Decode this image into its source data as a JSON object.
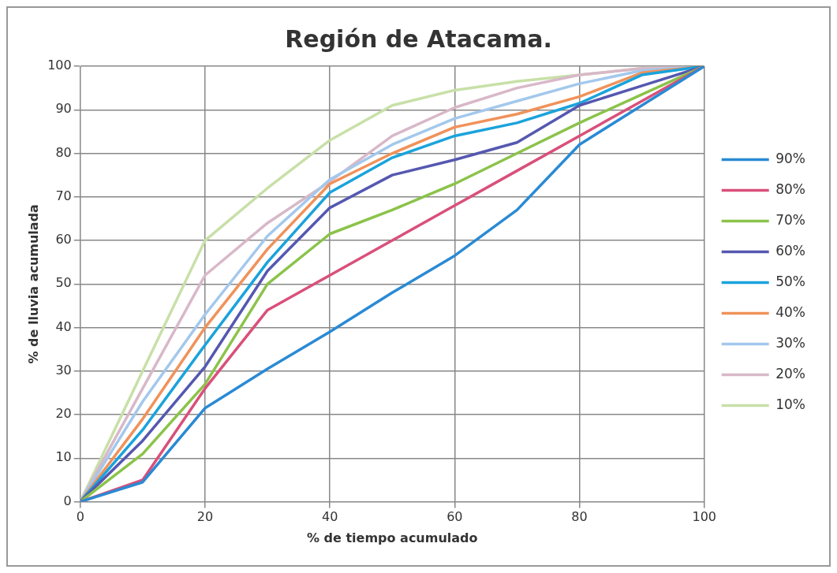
{
  "chart_data": {
    "type": "line",
    "title": "Región de Atacama.",
    "xlabel": "% de tiempo acumulado",
    "ylabel": "% de lluvia acumulada",
    "x": [
      0,
      10,
      20,
      30,
      40,
      50,
      60,
      70,
      80,
      90,
      100
    ],
    "xlim": [
      0,
      100
    ],
    "xticks": [
      0,
      20,
      40,
      60,
      80,
      100
    ],
    "ylim": [
      0,
      100
    ],
    "yticks": [
      0,
      10,
      20,
      30,
      40,
      50,
      60,
      70,
      80,
      90,
      100
    ],
    "grid": true,
    "legend": "right",
    "marker": "none",
    "line_style": "solid",
    "series": [
      {
        "name": "90%",
        "color": "#2a8ad4",
        "values": [
          0,
          4.5,
          21.5,
          30.5,
          39,
          48,
          56.5,
          67,
          82,
          91,
          100
        ]
      },
      {
        "name": "80%",
        "color": "#d9507a",
        "values": [
          0,
          5,
          26,
          44,
          52,
          60,
          68,
          76,
          84,
          92,
          100
        ]
      },
      {
        "name": "70%",
        "color": "#8bc34a",
        "values": [
          0,
          11,
          27,
          50,
          61.5,
          67,
          73,
          80,
          87,
          93.5,
          100
        ]
      },
      {
        "name": "60%",
        "color": "#5558b0",
        "values": [
          0,
          14,
          31,
          53,
          67.5,
          75,
          78.5,
          82.5,
          91,
          95.5,
          100
        ]
      },
      {
        "name": "50%",
        "color": "#1aa3dc",
        "values": [
          0,
          16.5,
          36,
          55,
          71,
          79,
          84,
          87,
          91.5,
          98,
          100
        ]
      },
      {
        "name": "40%",
        "color": "#f0925a",
        "values": [
          0,
          19,
          40,
          58,
          73,
          80,
          86,
          89,
          93,
          98.5,
          100
        ]
      },
      {
        "name": "30%",
        "color": "#a3c8ec",
        "values": [
          0,
          23,
          43,
          61,
          74,
          82,
          88,
          92,
          96,
          99,
          100
        ]
      },
      {
        "name": "20%",
        "color": "#d8b8c8",
        "values": [
          0,
          26,
          52,
          64,
          73.5,
          84,
          90.5,
          95,
          98,
          99.5,
          100
        ]
      },
      {
        "name": "10%",
        "color": "#c8e0a8",
        "values": [
          0,
          30,
          60,
          72,
          83,
          91,
          94.5,
          96.5,
          98,
          99.5,
          100
        ]
      }
    ]
  }
}
